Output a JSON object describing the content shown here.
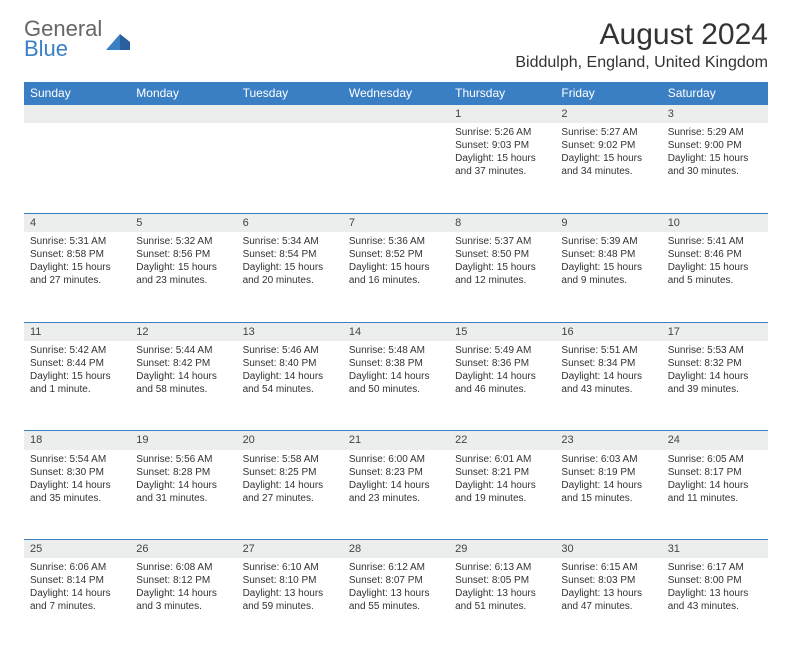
{
  "brand": {
    "part1": "General",
    "part2": "Blue"
  },
  "title": "August 2024",
  "location": "Biddulph, England, United Kingdom",
  "colors": {
    "header_bg": "#3a7fc4",
    "header_fg": "#ffffff",
    "daynum_bg": "#eceded",
    "border": "#3a7fc4",
    "text": "#333333"
  },
  "day_labels": [
    "Sunday",
    "Monday",
    "Tuesday",
    "Wednesday",
    "Thursday",
    "Friday",
    "Saturday"
  ],
  "weeks": [
    [
      null,
      null,
      null,
      null,
      {
        "n": "1",
        "sr": "Sunrise: 5:26 AM",
        "ss": "Sunset: 9:03 PM",
        "dl": "Daylight: 15 hours and 37 minutes."
      },
      {
        "n": "2",
        "sr": "Sunrise: 5:27 AM",
        "ss": "Sunset: 9:02 PM",
        "dl": "Daylight: 15 hours and 34 minutes."
      },
      {
        "n": "3",
        "sr": "Sunrise: 5:29 AM",
        "ss": "Sunset: 9:00 PM",
        "dl": "Daylight: 15 hours and 30 minutes."
      }
    ],
    [
      {
        "n": "4",
        "sr": "Sunrise: 5:31 AM",
        "ss": "Sunset: 8:58 PM",
        "dl": "Daylight: 15 hours and 27 minutes."
      },
      {
        "n": "5",
        "sr": "Sunrise: 5:32 AM",
        "ss": "Sunset: 8:56 PM",
        "dl": "Daylight: 15 hours and 23 minutes."
      },
      {
        "n": "6",
        "sr": "Sunrise: 5:34 AM",
        "ss": "Sunset: 8:54 PM",
        "dl": "Daylight: 15 hours and 20 minutes."
      },
      {
        "n": "7",
        "sr": "Sunrise: 5:36 AM",
        "ss": "Sunset: 8:52 PM",
        "dl": "Daylight: 15 hours and 16 minutes."
      },
      {
        "n": "8",
        "sr": "Sunrise: 5:37 AM",
        "ss": "Sunset: 8:50 PM",
        "dl": "Daylight: 15 hours and 12 minutes."
      },
      {
        "n": "9",
        "sr": "Sunrise: 5:39 AM",
        "ss": "Sunset: 8:48 PM",
        "dl": "Daylight: 15 hours and 9 minutes."
      },
      {
        "n": "10",
        "sr": "Sunrise: 5:41 AM",
        "ss": "Sunset: 8:46 PM",
        "dl": "Daylight: 15 hours and 5 minutes."
      }
    ],
    [
      {
        "n": "11",
        "sr": "Sunrise: 5:42 AM",
        "ss": "Sunset: 8:44 PM",
        "dl": "Daylight: 15 hours and 1 minute."
      },
      {
        "n": "12",
        "sr": "Sunrise: 5:44 AM",
        "ss": "Sunset: 8:42 PM",
        "dl": "Daylight: 14 hours and 58 minutes."
      },
      {
        "n": "13",
        "sr": "Sunrise: 5:46 AM",
        "ss": "Sunset: 8:40 PM",
        "dl": "Daylight: 14 hours and 54 minutes."
      },
      {
        "n": "14",
        "sr": "Sunrise: 5:48 AM",
        "ss": "Sunset: 8:38 PM",
        "dl": "Daylight: 14 hours and 50 minutes."
      },
      {
        "n": "15",
        "sr": "Sunrise: 5:49 AM",
        "ss": "Sunset: 8:36 PM",
        "dl": "Daylight: 14 hours and 46 minutes."
      },
      {
        "n": "16",
        "sr": "Sunrise: 5:51 AM",
        "ss": "Sunset: 8:34 PM",
        "dl": "Daylight: 14 hours and 43 minutes."
      },
      {
        "n": "17",
        "sr": "Sunrise: 5:53 AM",
        "ss": "Sunset: 8:32 PM",
        "dl": "Daylight: 14 hours and 39 minutes."
      }
    ],
    [
      {
        "n": "18",
        "sr": "Sunrise: 5:54 AM",
        "ss": "Sunset: 8:30 PM",
        "dl": "Daylight: 14 hours and 35 minutes."
      },
      {
        "n": "19",
        "sr": "Sunrise: 5:56 AM",
        "ss": "Sunset: 8:28 PM",
        "dl": "Daylight: 14 hours and 31 minutes."
      },
      {
        "n": "20",
        "sr": "Sunrise: 5:58 AM",
        "ss": "Sunset: 8:25 PM",
        "dl": "Daylight: 14 hours and 27 minutes."
      },
      {
        "n": "21",
        "sr": "Sunrise: 6:00 AM",
        "ss": "Sunset: 8:23 PM",
        "dl": "Daylight: 14 hours and 23 minutes."
      },
      {
        "n": "22",
        "sr": "Sunrise: 6:01 AM",
        "ss": "Sunset: 8:21 PM",
        "dl": "Daylight: 14 hours and 19 minutes."
      },
      {
        "n": "23",
        "sr": "Sunrise: 6:03 AM",
        "ss": "Sunset: 8:19 PM",
        "dl": "Daylight: 14 hours and 15 minutes."
      },
      {
        "n": "24",
        "sr": "Sunrise: 6:05 AM",
        "ss": "Sunset: 8:17 PM",
        "dl": "Daylight: 14 hours and 11 minutes."
      }
    ],
    [
      {
        "n": "25",
        "sr": "Sunrise: 6:06 AM",
        "ss": "Sunset: 8:14 PM",
        "dl": "Daylight: 14 hours and 7 minutes."
      },
      {
        "n": "26",
        "sr": "Sunrise: 6:08 AM",
        "ss": "Sunset: 8:12 PM",
        "dl": "Daylight: 14 hours and 3 minutes."
      },
      {
        "n": "27",
        "sr": "Sunrise: 6:10 AM",
        "ss": "Sunset: 8:10 PM",
        "dl": "Daylight: 13 hours and 59 minutes."
      },
      {
        "n": "28",
        "sr": "Sunrise: 6:12 AM",
        "ss": "Sunset: 8:07 PM",
        "dl": "Daylight: 13 hours and 55 minutes."
      },
      {
        "n": "29",
        "sr": "Sunrise: 6:13 AM",
        "ss": "Sunset: 8:05 PM",
        "dl": "Daylight: 13 hours and 51 minutes."
      },
      {
        "n": "30",
        "sr": "Sunrise: 6:15 AM",
        "ss": "Sunset: 8:03 PM",
        "dl": "Daylight: 13 hours and 47 minutes."
      },
      {
        "n": "31",
        "sr": "Sunrise: 6:17 AM",
        "ss": "Sunset: 8:00 PM",
        "dl": "Daylight: 13 hours and 43 minutes."
      }
    ]
  ]
}
